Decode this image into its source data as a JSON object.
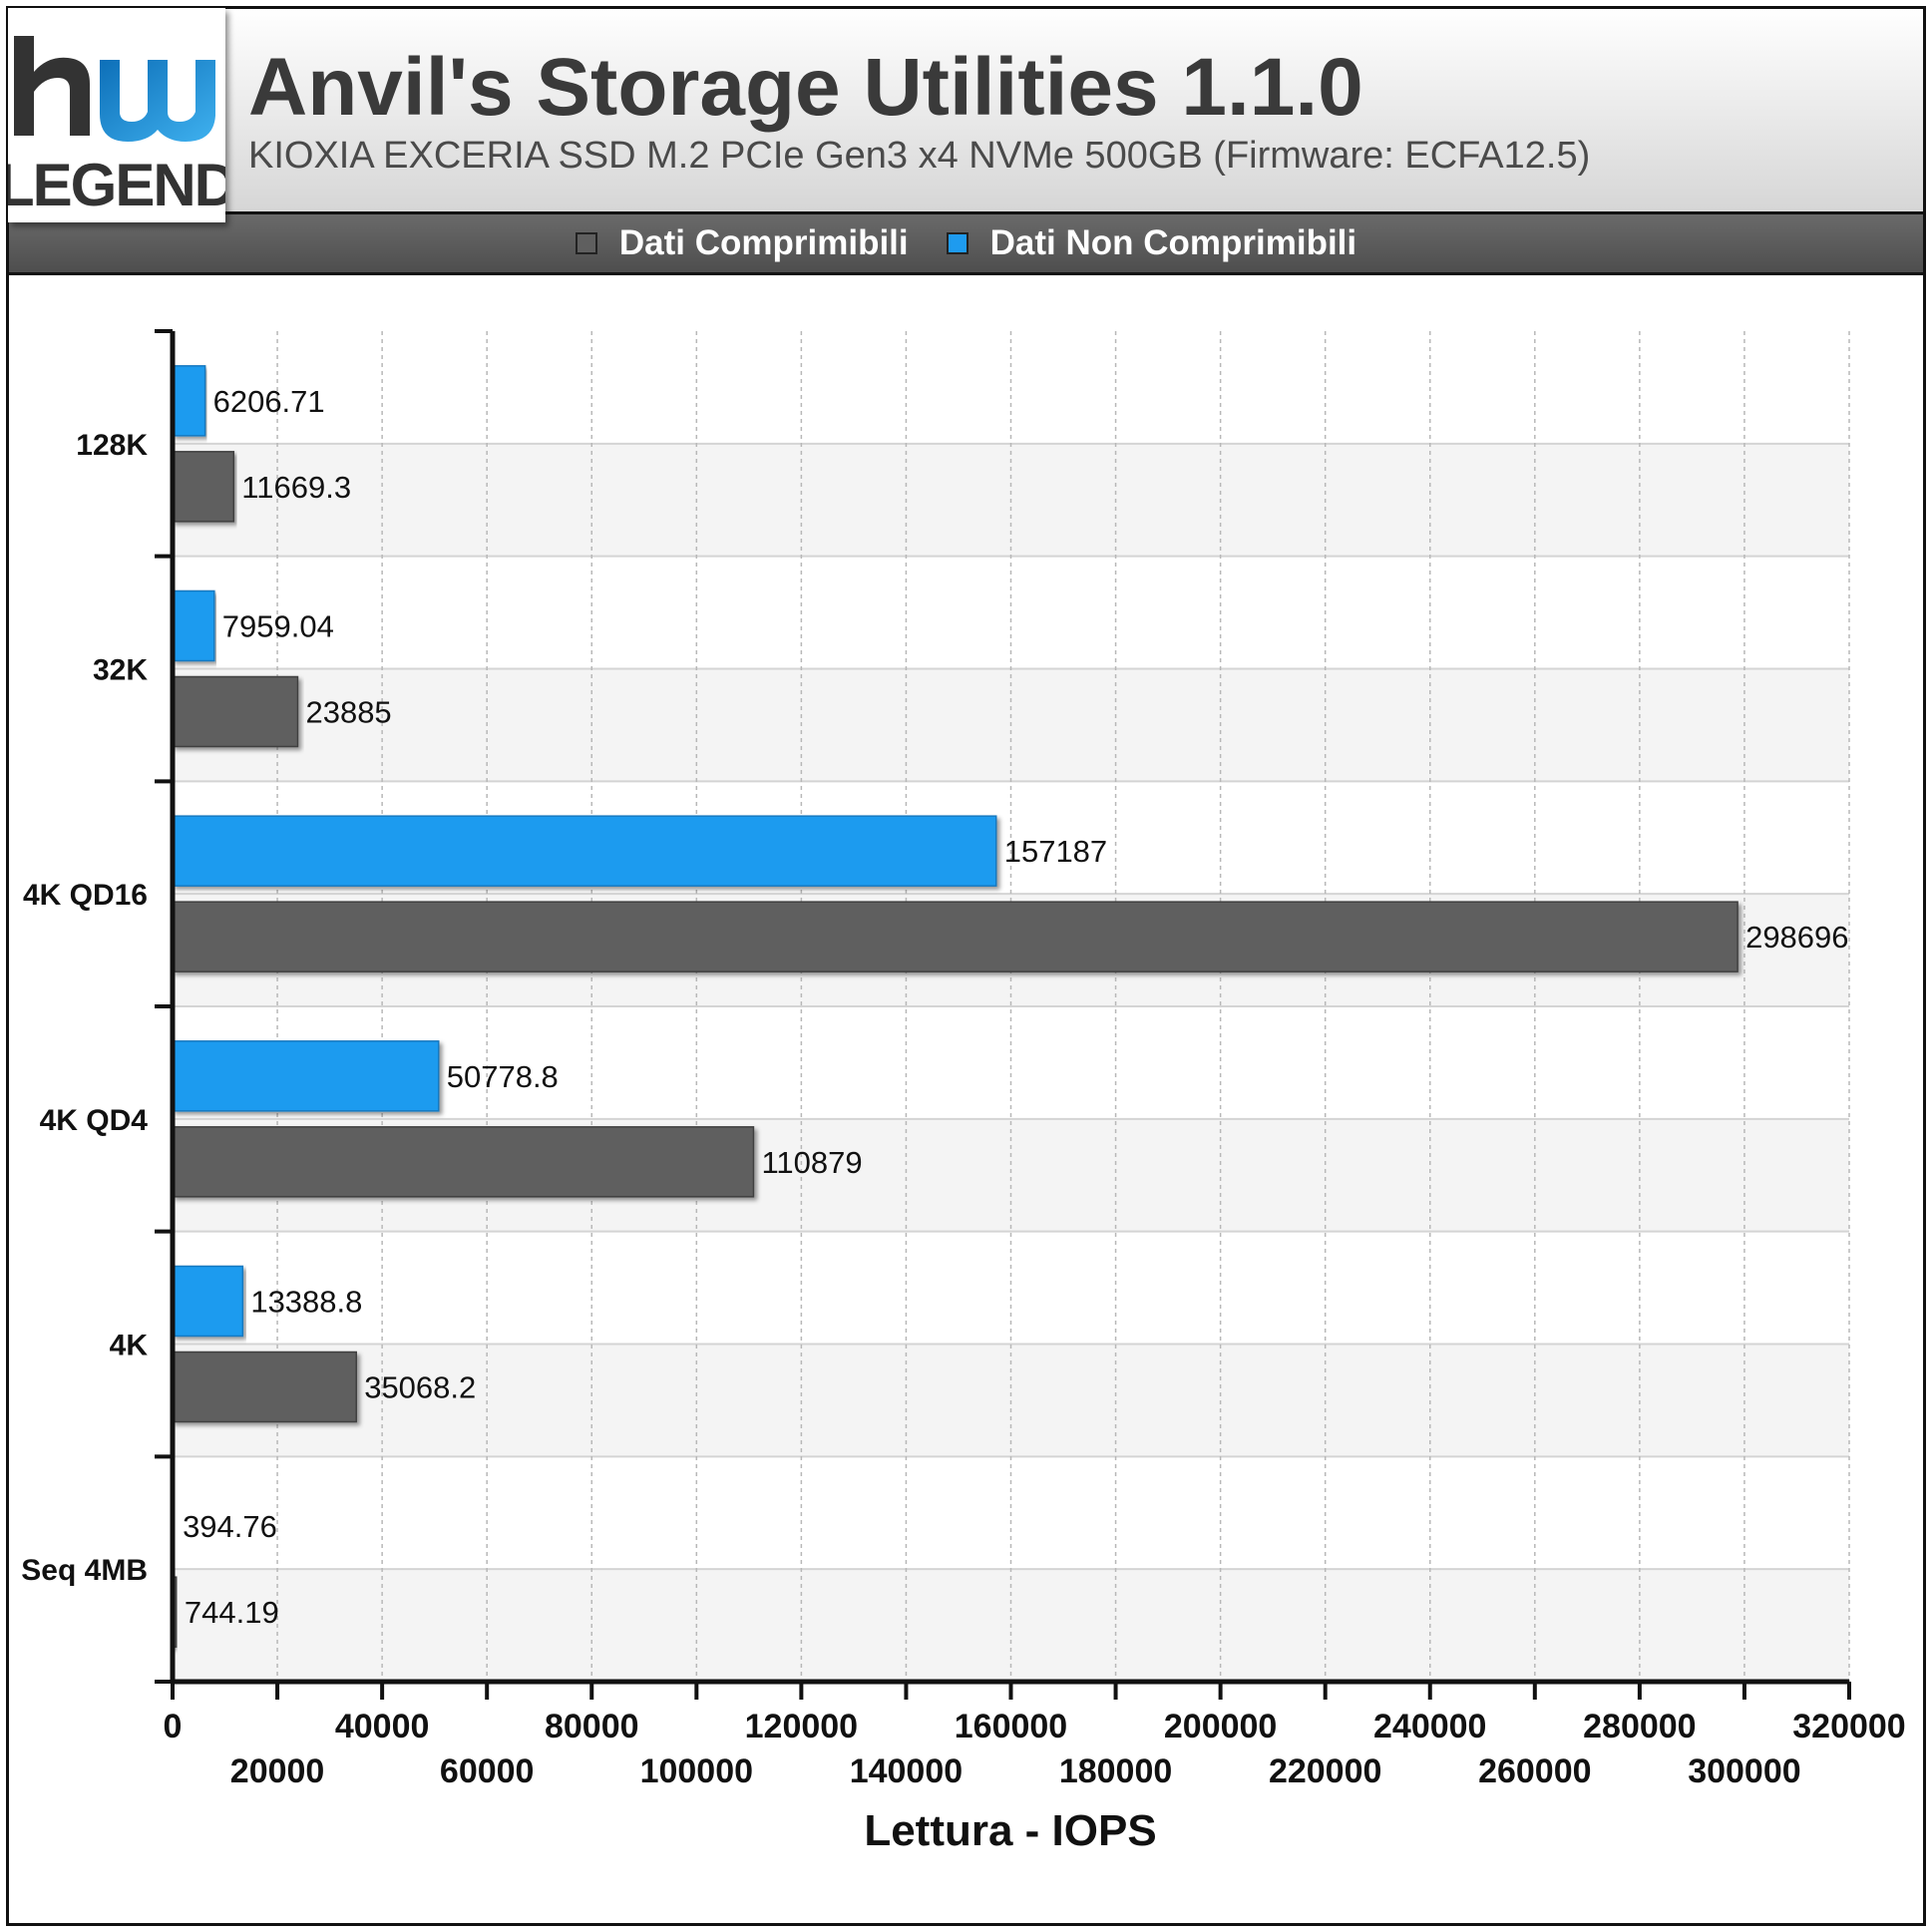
{
  "header": {
    "title": "Anvil's Storage Utilities 1.1.0",
    "subtitle": "KIOXIA EXCERIA SSD M.2 PCIe Gen3 x4 NVMe 500GB (Firmware: ECFA12.5)"
  },
  "logo": {
    "text": "hwLEGEND",
    "line1": "hu",
    "line2": "LEGEND"
  },
  "colors": {
    "compressible": "#5f5f5f",
    "non_compressible": "#1e9bef"
  },
  "chart_data": {
    "type": "bar",
    "orientation": "horizontal",
    "title": "Anvil's Storage Utilities 1.1.0",
    "subtitle": "KIOXIA EXCERIA SSD M.2 PCIe Gen3 x4 NVMe 500GB (Firmware: ECFA12.5)",
    "xlabel": "Lettura - IOPS",
    "ylabel": "",
    "categories": [
      "128K",
      "32K",
      "4K QD16",
      "4K QD4",
      "4K",
      "Seq 4MB"
    ],
    "series": [
      {
        "name": "Dati Comprimibili",
        "color": "#5f5f5f",
        "values": [
          11669.3,
          23885,
          298696,
          110879,
          35068.2,
          744.19
        ],
        "labels": [
          "11669.3",
          "23885",
          "298696",
          "110879",
          "35068.2",
          "744.19"
        ]
      },
      {
        "name": "Dati Non Comprimibili",
        "color": "#1e9bef",
        "values": [
          6206.71,
          7959.04,
          157187,
          50778.8,
          13388.8,
          394.76
        ],
        "labels": [
          "6206.71",
          "7959.04",
          "157187",
          "50778.8",
          "13388.8",
          "394.76"
        ]
      }
    ],
    "xlim": [
      0,
      320000
    ],
    "xticks": [
      0,
      20000,
      40000,
      60000,
      80000,
      100000,
      120000,
      140000,
      160000,
      180000,
      200000,
      220000,
      240000,
      260000,
      280000,
      300000,
      320000
    ],
    "xtick_labels": [
      "0",
      "20000",
      "40000",
      "60000",
      "80000",
      "100000",
      "120000",
      "140000",
      "160000",
      "180000",
      "200000",
      "220000",
      "240000",
      "260000",
      "280000",
      "300000",
      "320000"
    ],
    "grid": "vertical dashed",
    "legend_position": "top"
  }
}
